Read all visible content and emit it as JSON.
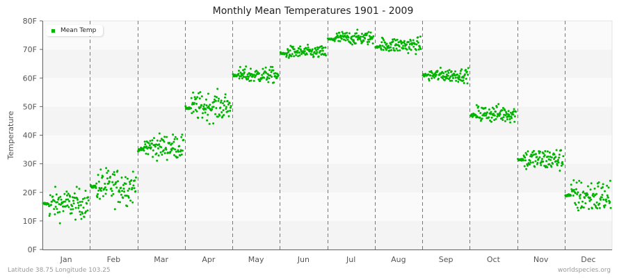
{
  "chart_data": {
    "type": "scatter",
    "title": "Monthly Mean Temperatures 1901 - 2009",
    "xlabel": "",
    "ylabel": "Temperature",
    "ylim": [
      0,
      80
    ],
    "yticks": [
      "0F",
      "10F",
      "20F",
      "30F",
      "40F",
      "50F",
      "60F",
      "70F",
      "80F"
    ],
    "categories": [
      "Jan",
      "Feb",
      "Mar",
      "Apr",
      "May",
      "Jun",
      "Jul",
      "Aug",
      "Sep",
      "Oct",
      "Nov",
      "Dec"
    ],
    "legend": [
      {
        "name": "Mean Temp",
        "color": "#00b400"
      }
    ],
    "legend_position": "top-left",
    "grid": {
      "horizontal_bands": true,
      "vertical_dashed_month_separators": true
    },
    "series": [
      {
        "name": "Mean Temp",
        "points_per_month": 109,
        "years": [
          1901,
          2009
        ],
        "monthly_summary": [
          {
            "month": "Jan",
            "start": 16,
            "mean": 16,
            "min": 8,
            "max": 22.5
          },
          {
            "month": "Feb",
            "start": 22,
            "mean": 22,
            "min": 12.5,
            "max": 30
          },
          {
            "month": "Mar",
            "start": 35,
            "mean": 36,
            "min": 29,
            "max": 41
          },
          {
            "month": "Apr",
            "start": 49.5,
            "mean": 50,
            "min": 43.5,
            "max": 57
          },
          {
            "month": "May",
            "start": 61,
            "mean": 61,
            "min": 57.5,
            "max": 65
          },
          {
            "month": "Jun",
            "start": 68.5,
            "mean": 69,
            "min": 66,
            "max": 72
          },
          {
            "month": "Jul",
            "start": 73.5,
            "mean": 74,
            "min": 70.5,
            "max": 77
          },
          {
            "month": "Aug",
            "start": 71,
            "mean": 71.5,
            "min": 67,
            "max": 74.5
          },
          {
            "month": "Sep",
            "start": 61,
            "mean": 61,
            "min": 58,
            "max": 64.5
          },
          {
            "month": "Oct",
            "start": 47,
            "mean": 47.5,
            "min": 43,
            "max": 51.5
          },
          {
            "month": "Nov",
            "start": 31.5,
            "mean": 31.5,
            "min": 26.5,
            "max": 37.5
          },
          {
            "month": "Dec",
            "start": 19,
            "mean": 18.5,
            "min": 9.5,
            "max": 26
          }
        ]
      }
    ]
  },
  "footer": {
    "location": "Latitude 38.75 Longitude 103.25",
    "source": "worldspecies.org"
  }
}
